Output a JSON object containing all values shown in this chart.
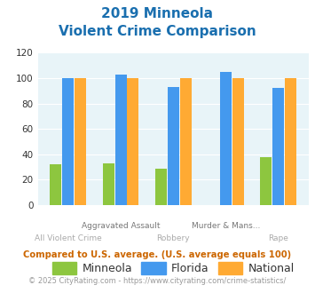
{
  "title_line1": "2019 Minneola",
  "title_line2": "Violent Crime Comparison",
  "categories": [
    "All Violent Crime",
    "Aggravated Assault",
    "Robbery",
    "Murder & Mans...",
    "Rape"
  ],
  "minneola": [
    32,
    33,
    29,
    0,
    38
  ],
  "florida": [
    100,
    103,
    93,
    105,
    92
  ],
  "national": [
    100,
    100,
    100,
    100,
    100
  ],
  "bar_colors": {
    "minneola": "#8dc63f",
    "florida": "#4499ee",
    "national": "#ffaa33"
  },
  "ylim": [
    0,
    120
  ],
  "yticks": [
    0,
    20,
    40,
    60,
    80,
    100,
    120
  ],
  "bg_color": "#e8f4f8",
  "title_color": "#1a6faf",
  "xlabel_top_color": "#777777",
  "xlabel_bot_color": "#aaaaaa",
  "footnote1": "Compared to U.S. average. (U.S. average equals 100)",
  "footnote2": "© 2025 CityRating.com - https://www.cityrating.com/crime-statistics/",
  "footnote1_color": "#cc6600",
  "footnote2_color": "#999999",
  "footnote2_link_color": "#4499ee",
  "legend_labels": [
    "Minneola",
    "Florida",
    "National"
  ]
}
